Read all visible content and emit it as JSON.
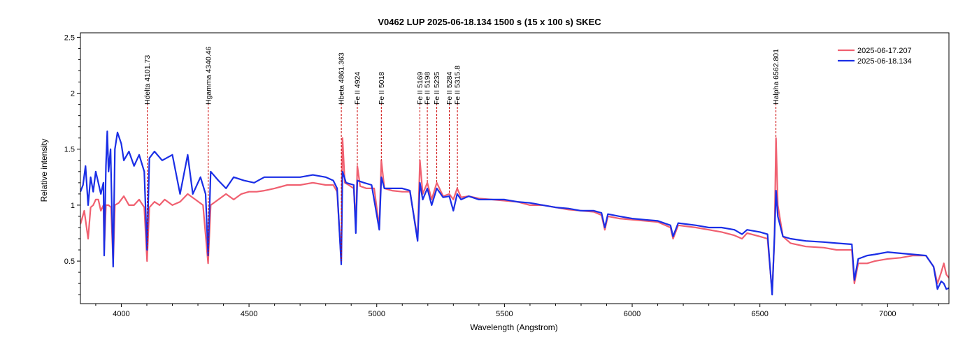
{
  "chart_data": {
    "type": "line",
    "title": "V0462 LUP   2025-06-18.134   1500 s (15 x 100 s)   SKEC",
    "xlabel": "Wavelength (Angstrom)",
    "ylabel": "Relative intensity",
    "xlim": [
      3840,
      7240
    ],
    "ylim": [
      0.12,
      2.54
    ],
    "xticks": [
      4000,
      4500,
      5000,
      5500,
      6000,
      6500,
      7000
    ],
    "yticks": [
      0.5,
      1,
      1.5,
      2,
      2.5
    ],
    "ytick_labels": [
      "0.5",
      "1",
      "1.5",
      "2",
      "2.5"
    ],
    "grid": false,
    "legend_position": "top-right",
    "lines": [
      {
        "label": "Hdelta 4101.73",
        "x": 4101.73
      },
      {
        "label": "Hgamma 4340.46",
        "x": 4340.46
      },
      {
        "label": "Hbeta 4861.363",
        "x": 4861.363
      },
      {
        "label": "Fe II 4924",
        "x": 4924
      },
      {
        "label": "Fe II 5018",
        "x": 5018
      },
      {
        "label": "Fe II 5169",
        "x": 5169
      },
      {
        "label": "Fe II 5198",
        "x": 5198
      },
      {
        "label": "Fe II 5235",
        "x": 5235
      },
      {
        "label": "Fe II 5284",
        "x": 5284
      },
      {
        "label": "Fe II 5315.8",
        "x": 5315.8
      },
      {
        "label": "Halpha 6562.801",
        "x": 6562.801
      }
    ],
    "series": [
      {
        "name": "2025-06-17.207",
        "color": "#f06070",
        "points": [
          [
            3840,
            0.83
          ],
          [
            3855,
            0.95
          ],
          [
            3870,
            0.7
          ],
          [
            3880,
            0.98
          ],
          [
            3890,
            1.0
          ],
          [
            3900,
            1.05
          ],
          [
            3910,
            1.05
          ],
          [
            3920,
            0.95
          ],
          [
            3930,
            1.0
          ],
          [
            3933,
            0.6
          ],
          [
            3940,
            1.0
          ],
          [
            3950,
            1.0
          ],
          [
            3960,
            0.98
          ],
          [
            3968,
            0.48
          ],
          [
            3975,
            1.0
          ],
          [
            3990,
            1.02
          ],
          [
            4010,
            1.08
          ],
          [
            4030,
            1.0
          ],
          [
            4050,
            1.0
          ],
          [
            4070,
            1.05
          ],
          [
            4090,
            0.98
          ],
          [
            4101,
            0.5
          ],
          [
            4110,
            0.98
          ],
          [
            4130,
            1.03
          ],
          [
            4150,
            1.0
          ],
          [
            4170,
            1.05
          ],
          [
            4200,
            1.0
          ],
          [
            4230,
            1.03
          ],
          [
            4260,
            1.1
          ],
          [
            4290,
            1.05
          ],
          [
            4320,
            1.0
          ],
          [
            4340,
            0.48
          ],
          [
            4350,
            1.0
          ],
          [
            4380,
            1.05
          ],
          [
            4410,
            1.1
          ],
          [
            4440,
            1.05
          ],
          [
            4470,
            1.1
          ],
          [
            4500,
            1.12
          ],
          [
            4530,
            1.12
          ],
          [
            4560,
            1.13
          ],
          [
            4600,
            1.15
          ],
          [
            4650,
            1.18
          ],
          [
            4700,
            1.18
          ],
          [
            4750,
            1.2
          ],
          [
            4800,
            1.18
          ],
          [
            4830,
            1.18
          ],
          [
            4845,
            1.12
          ],
          [
            4861,
            0.5
          ],
          [
            4866,
            1.6
          ],
          [
            4875,
            1.2
          ],
          [
            4890,
            1.18
          ],
          [
            4910,
            1.15
          ],
          [
            4918,
            0.8
          ],
          [
            4924,
            1.35
          ],
          [
            4935,
            1.17
          ],
          [
            4960,
            1.15
          ],
          [
            4990,
            1.15
          ],
          [
            5010,
            0.8
          ],
          [
            5018,
            1.4
          ],
          [
            5030,
            1.15
          ],
          [
            5060,
            1.13
          ],
          [
            5100,
            1.12
          ],
          [
            5130,
            1.12
          ],
          [
            5160,
            0.7
          ],
          [
            5169,
            1.4
          ],
          [
            5180,
            1.1
          ],
          [
            5198,
            1.2
          ],
          [
            5215,
            1.05
          ],
          [
            5235,
            1.2
          ],
          [
            5260,
            1.08
          ],
          [
            5284,
            1.1
          ],
          [
            5300,
            1.05
          ],
          [
            5315,
            1.15
          ],
          [
            5330,
            1.07
          ],
          [
            5360,
            1.08
          ],
          [
            5400,
            1.06
          ],
          [
            5450,
            1.05
          ],
          [
            5500,
            1.04
          ],
          [
            5550,
            1.03
          ],
          [
            5600,
            1.0
          ],
          [
            5650,
            1.0
          ],
          [
            5700,
            0.98
          ],
          [
            5750,
            0.96
          ],
          [
            5800,
            0.95
          ],
          [
            5850,
            0.94
          ],
          [
            5880,
            0.91
          ],
          [
            5893,
            0.78
          ],
          [
            5905,
            0.9
          ],
          [
            5950,
            0.88
          ],
          [
            6000,
            0.87
          ],
          [
            6050,
            0.86
          ],
          [
            6100,
            0.85
          ],
          [
            6150,
            0.8
          ],
          [
            6160,
            0.7
          ],
          [
            6180,
            0.82
          ],
          [
            6250,
            0.8
          ],
          [
            6300,
            0.78
          ],
          [
            6350,
            0.76
          ],
          [
            6400,
            0.73
          ],
          [
            6430,
            0.7
          ],
          [
            6450,
            0.75
          ],
          [
            6500,
            0.72
          ],
          [
            6530,
            0.7
          ],
          [
            6548,
            0.22
          ],
          [
            6557,
            0.7
          ],
          [
            6563,
            1.6
          ],
          [
            6570,
            1.0
          ],
          [
            6590,
            0.72
          ],
          [
            6620,
            0.66
          ],
          [
            6680,
            0.63
          ],
          [
            6750,
            0.62
          ],
          [
            6800,
            0.6
          ],
          [
            6860,
            0.6
          ],
          [
            6870,
            0.3
          ],
          [
            6885,
            0.48
          ],
          [
            6920,
            0.48
          ],
          [
            6950,
            0.5
          ],
          [
            7000,
            0.52
          ],
          [
            7050,
            0.53
          ],
          [
            7100,
            0.55
          ],
          [
            7150,
            0.55
          ],
          [
            7180,
            0.45
          ],
          [
            7195,
            0.3
          ],
          [
            7210,
            0.4
          ],
          [
            7220,
            0.48
          ],
          [
            7230,
            0.38
          ],
          [
            7240,
            0.35
          ]
        ]
      },
      {
        "name": "2025-06-18.134",
        "color": "#1a2ee6",
        "points": [
          [
            3840,
            1.12
          ],
          [
            3850,
            1.18
          ],
          [
            3860,
            1.35
          ],
          [
            3870,
            1.0
          ],
          [
            3880,
            1.25
          ],
          [
            3890,
            1.12
          ],
          [
            3900,
            1.3
          ],
          [
            3910,
            1.2
          ],
          [
            3920,
            1.1
          ],
          [
            3930,
            1.2
          ],
          [
            3933,
            0.55
          ],
          [
            3940,
            1.35
          ],
          [
            3945,
            1.66
          ],
          [
            3950,
            1.3
          ],
          [
            3958,
            1.5
          ],
          [
            3968,
            0.45
          ],
          [
            3975,
            1.5
          ],
          [
            3985,
            1.65
          ],
          [
            4000,
            1.55
          ],
          [
            4010,
            1.4
          ],
          [
            4030,
            1.48
          ],
          [
            4050,
            1.35
          ],
          [
            4070,
            1.45
          ],
          [
            4090,
            1.3
          ],
          [
            4101,
            0.6
          ],
          [
            4110,
            1.42
          ],
          [
            4130,
            1.48
          ],
          [
            4160,
            1.4
          ],
          [
            4200,
            1.45
          ],
          [
            4230,
            1.1
          ],
          [
            4260,
            1.45
          ],
          [
            4280,
            1.1
          ],
          [
            4310,
            1.25
          ],
          [
            4330,
            1.1
          ],
          [
            4340,
            0.55
          ],
          [
            4350,
            1.3
          ],
          [
            4380,
            1.22
          ],
          [
            4410,
            1.15
          ],
          [
            4440,
            1.25
          ],
          [
            4480,
            1.22
          ],
          [
            4520,
            1.2
          ],
          [
            4560,
            1.25
          ],
          [
            4600,
            1.25
          ],
          [
            4650,
            1.25
          ],
          [
            4700,
            1.25
          ],
          [
            4750,
            1.27
          ],
          [
            4800,
            1.25
          ],
          [
            4830,
            1.22
          ],
          [
            4845,
            1.15
          ],
          [
            4861,
            0.47
          ],
          [
            4866,
            1.3
          ],
          [
            4880,
            1.2
          ],
          [
            4910,
            1.18
          ],
          [
            4918,
            0.75
          ],
          [
            4924,
            1.22
          ],
          [
            4950,
            1.2
          ],
          [
            4980,
            1.18
          ],
          [
            5010,
            0.78
          ],
          [
            5018,
            1.25
          ],
          [
            5030,
            1.15
          ],
          [
            5060,
            1.15
          ],
          [
            5100,
            1.15
          ],
          [
            5130,
            1.13
          ],
          [
            5160,
            0.68
          ],
          [
            5169,
            1.2
          ],
          [
            5180,
            1.05
          ],
          [
            5198,
            1.15
          ],
          [
            5215,
            1.0
          ],
          [
            5235,
            1.15
          ],
          [
            5260,
            1.07
          ],
          [
            5284,
            1.08
          ],
          [
            5300,
            0.95
          ],
          [
            5315,
            1.1
          ],
          [
            5330,
            1.05
          ],
          [
            5360,
            1.08
          ],
          [
            5400,
            1.05
          ],
          [
            5450,
            1.05
          ],
          [
            5500,
            1.05
          ],
          [
            5550,
            1.03
          ],
          [
            5600,
            1.02
          ],
          [
            5650,
            1.0
          ],
          [
            5700,
            0.98
          ],
          [
            5750,
            0.97
          ],
          [
            5800,
            0.95
          ],
          [
            5850,
            0.95
          ],
          [
            5880,
            0.93
          ],
          [
            5893,
            0.8
          ],
          [
            5905,
            0.92
          ],
          [
            5950,
            0.9
          ],
          [
            6000,
            0.88
          ],
          [
            6050,
            0.87
          ],
          [
            6100,
            0.86
          ],
          [
            6150,
            0.82
          ],
          [
            6160,
            0.72
          ],
          [
            6180,
            0.84
          ],
          [
            6250,
            0.82
          ],
          [
            6300,
            0.8
          ],
          [
            6350,
            0.8
          ],
          [
            6400,
            0.78
          ],
          [
            6430,
            0.74
          ],
          [
            6450,
            0.78
          ],
          [
            6500,
            0.76
          ],
          [
            6530,
            0.74
          ],
          [
            6548,
            0.2
          ],
          [
            6557,
            0.72
          ],
          [
            6563,
            1.13
          ],
          [
            6570,
            0.9
          ],
          [
            6590,
            0.72
          ],
          [
            6620,
            0.7
          ],
          [
            6680,
            0.68
          ],
          [
            6750,
            0.67
          ],
          [
            6800,
            0.66
          ],
          [
            6860,
            0.65
          ],
          [
            6870,
            0.33
          ],
          [
            6885,
            0.52
          ],
          [
            6920,
            0.55
          ],
          [
            6950,
            0.56
          ],
          [
            7000,
            0.58
          ],
          [
            7050,
            0.57
          ],
          [
            7100,
            0.56
          ],
          [
            7150,
            0.55
          ],
          [
            7180,
            0.45
          ],
          [
            7195,
            0.25
          ],
          [
            7210,
            0.32
          ],
          [
            7220,
            0.3
          ],
          [
            7230,
            0.25
          ],
          [
            7240,
            0.26
          ]
        ]
      }
    ]
  }
}
